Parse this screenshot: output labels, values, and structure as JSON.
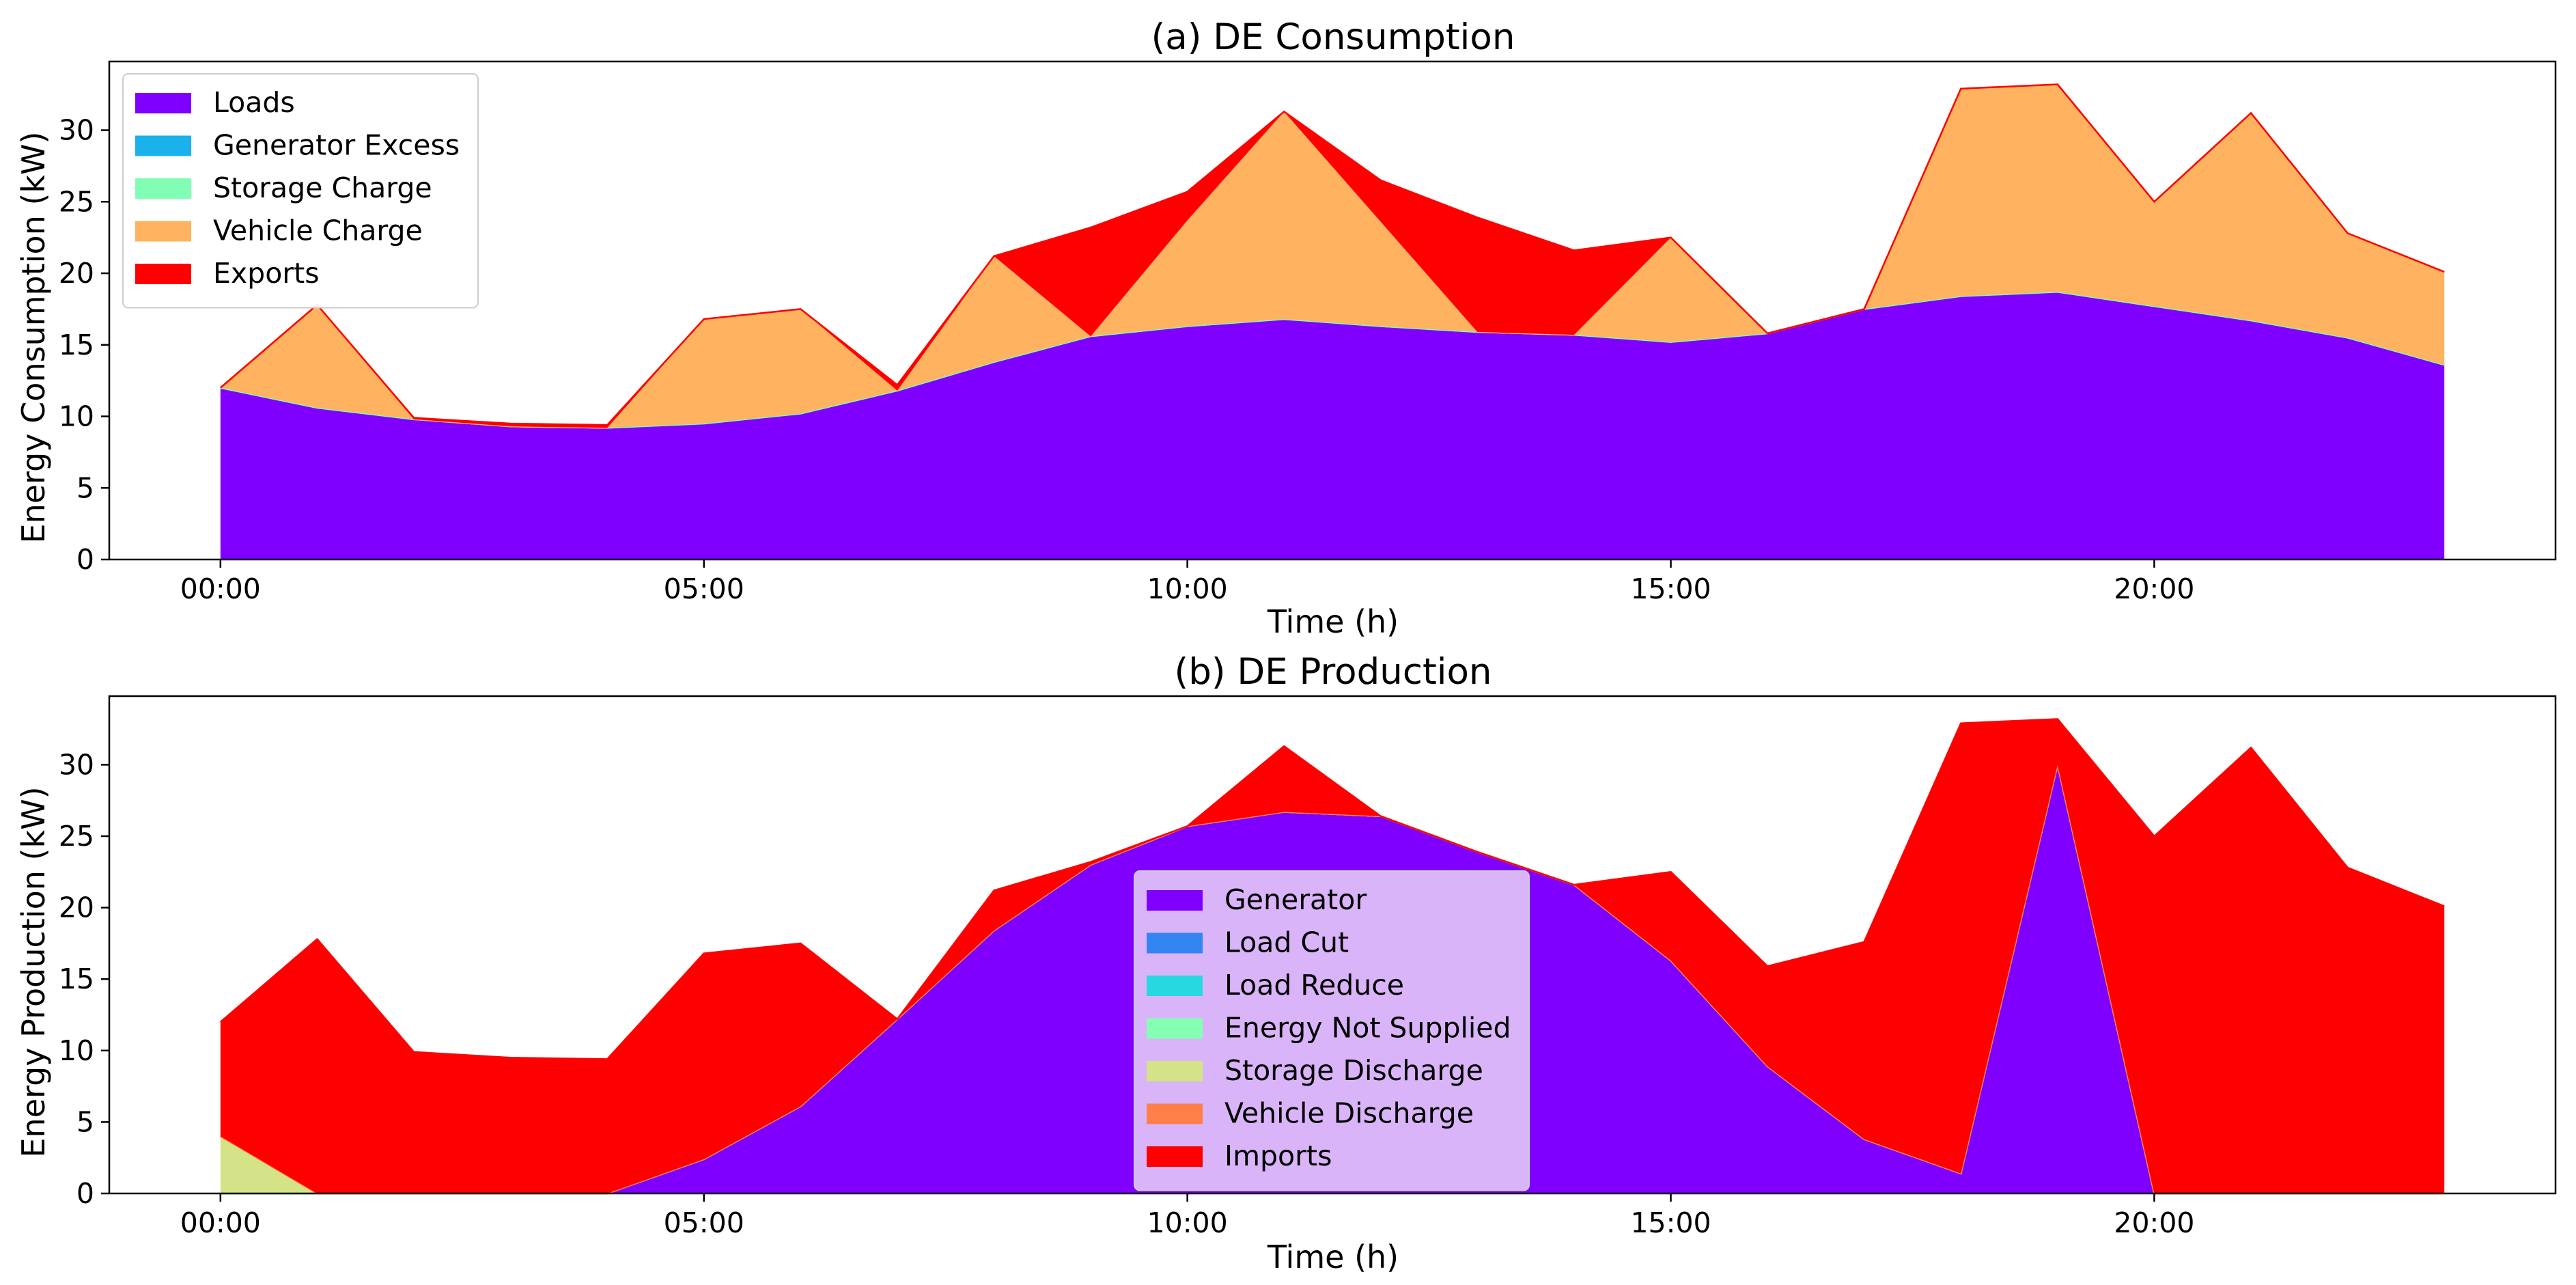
{
  "figure": {
    "charts_count": 2
  },
  "chart_data": [
    {
      "type": "area",
      "stacked": true,
      "title": "(a) DE Consumption",
      "xlabel": "Time (h)",
      "ylabel": "Energy Consumption (kW)",
      "x": [
        0,
        1,
        2,
        3,
        4,
        5,
        6,
        7,
        8,
        9,
        10,
        11,
        12,
        13,
        14,
        15,
        16,
        17,
        18,
        19,
        20,
        21,
        22,
        23
      ],
      "xlim": [
        -1.15,
        24.15
      ],
      "ylim": [
        0,
        34.8
      ],
      "xticks": [
        0,
        5,
        10,
        15,
        20
      ],
      "xtick_labels": [
        "00:00",
        "05:00",
        "10:00",
        "15:00",
        "20:00"
      ],
      "yticks": [
        0,
        5,
        10,
        15,
        20,
        25,
        30
      ],
      "ytick_labels": [
        "0",
        "5",
        "10",
        "15",
        "20",
        "25",
        "30"
      ],
      "legend_position": "upper-left",
      "legend_background": "#ffffff",
      "series": [
        {
          "name": "Loads",
          "color": "#8000ff",
          "values": [
            12.0,
            10.6,
            9.8,
            9.3,
            9.2,
            9.5,
            10.2,
            11.8,
            13.8,
            15.6,
            16.3,
            16.8,
            16.3,
            15.9,
            15.7,
            15.2,
            15.8,
            17.5,
            18.4,
            18.7,
            17.7,
            16.7,
            15.5,
            13.6
          ]
        },
        {
          "name": "Generator Excess",
          "color": "#1ab2eb",
          "values": [
            0,
            0,
            0,
            0,
            0,
            0,
            0,
            0,
            0,
            0,
            0,
            0,
            0,
            0,
            0,
            0,
            0,
            0,
            0,
            0,
            0,
            0,
            0,
            0
          ]
        },
        {
          "name": "Storage Charge",
          "color": "#80ffb4",
          "values": [
            0,
            0,
            0,
            0,
            0,
            0,
            0,
            0,
            0,
            0,
            0,
            0,
            0,
            0,
            0,
            0,
            0,
            0,
            0,
            0,
            0,
            0,
            0,
            0
          ]
        },
        {
          "name": "Vehicle Charge",
          "color": "#ffb360",
          "values": [
            0,
            7.2,
            0,
            0,
            0,
            7.3,
            7.3,
            0,
            7.4,
            0,
            7.4,
            14.5,
            7.3,
            0,
            0,
            7.3,
            0,
            0,
            14.5,
            14.5,
            7.3,
            14.5,
            7.3,
            6.5
          ]
        },
        {
          "name": "Exports",
          "color": "#ff0000",
          "values": [
            0,
            0,
            0.1,
            0.2,
            0.2,
            0,
            0,
            0.4,
            0,
            7.6,
            2.0,
            0,
            2.9,
            8.0,
            5.9,
            0,
            0,
            0,
            0,
            0,
            0,
            0,
            0,
            0
          ]
        }
      ]
    },
    {
      "type": "area",
      "stacked": true,
      "title": "(b) DE Production",
      "xlabel": "Time (h)",
      "ylabel": "Energy Production (kW)",
      "x": [
        0,
        1,
        2,
        3,
        4,
        5,
        6,
        7,
        8,
        9,
        10,
        11,
        12,
        13,
        14,
        15,
        16,
        17,
        18,
        19,
        20,
        21,
        22,
        23
      ],
      "xlim": [
        -1.15,
        24.15
      ],
      "ylim": [
        0,
        34.8
      ],
      "xticks": [
        0,
        5,
        10,
        15,
        20
      ],
      "xtick_labels": [
        "00:00",
        "05:00",
        "10:00",
        "15:00",
        "20:00"
      ],
      "yticks": [
        0,
        5,
        10,
        15,
        20,
        25,
        30
      ],
      "ytick_labels": [
        "0",
        "5",
        "10",
        "15",
        "20",
        "25",
        "30"
      ],
      "legend_position": "lower-center",
      "legend_background": "#e3c8f8",
      "series": [
        {
          "name": "Generator",
          "color": "#8000ff",
          "values": [
            0,
            0,
            0,
            0,
            0,
            2.4,
            6.1,
            12.2,
            18.4,
            23.0,
            25.7,
            26.7,
            26.4,
            23.9,
            21.6,
            16.3,
            8.9,
            3.8,
            1.4,
            30.0,
            0,
            0,
            0,
            0
          ]
        },
        {
          "name": "Load Cut",
          "color": "#3385f2",
          "values": [
            0,
            0,
            0,
            0,
            0,
            0,
            0,
            0,
            0,
            0,
            0,
            0,
            0,
            0,
            0,
            0,
            0,
            0,
            0,
            0,
            0,
            0,
            0,
            0
          ]
        },
        {
          "name": "Load Reduce",
          "color": "#28d8e0",
          "values": [
            0,
            0,
            0,
            0,
            0,
            0,
            0,
            0,
            0,
            0,
            0,
            0,
            0,
            0,
            0,
            0,
            0,
            0,
            0,
            0,
            0,
            0,
            0,
            0
          ]
        },
        {
          "name": "Energy Not Supplied",
          "color": "#84ffb3",
          "values": [
            0,
            0,
            0,
            0,
            0,
            0,
            0,
            0,
            0,
            0,
            0,
            0,
            0,
            0,
            0,
            0,
            0,
            0,
            0,
            0,
            0,
            0,
            0,
            0
          ]
        },
        {
          "name": "Storage Discharge",
          "color": "#d5e388",
          "values": [
            4.0,
            0,
            0,
            0,
            0,
            0,
            0,
            0,
            0,
            0,
            0,
            0,
            0,
            0,
            0,
            0,
            0,
            0,
            0,
            0,
            0,
            0,
            0,
            0
          ]
        },
        {
          "name": "Vehicle Discharge",
          "color": "#ff7e4a",
          "values": [
            0,
            0,
            0,
            0,
            0,
            0,
            0,
            0,
            0,
            0,
            0,
            0,
            0,
            0,
            0,
            0,
            0,
            0,
            0,
            0,
            0,
            0,
            0,
            0
          ]
        },
        {
          "name": "Imports",
          "color": "#ff0000",
          "values": [
            8.0,
            17.8,
            9.9,
            9.5,
            9.4,
            14.4,
            11.4,
            0,
            2.8,
            0.2,
            0,
            4.6,
            0,
            0,
            0,
            6.2,
            7.0,
            13.8,
            31.5,
            3.2,
            25.0,
            31.2,
            22.8,
            20.1
          ]
        }
      ]
    }
  ]
}
